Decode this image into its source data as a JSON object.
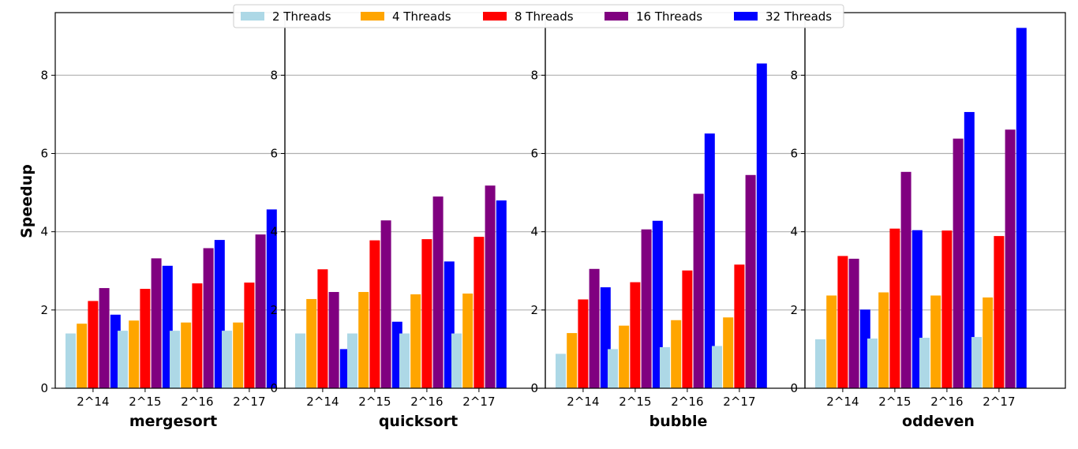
{
  "chart_data": {
    "type": "bar",
    "ylabel": "Speedup",
    "ylim": [
      0,
      9.6
    ],
    "yticks": [
      0,
      2,
      4,
      6,
      8
    ],
    "grid": "horizontal",
    "legend_position": "top-center",
    "categories": [
      "2^14",
      "2^15",
      "2^16",
      "2^17"
    ],
    "series_styles": [
      {
        "name": "2 Threads",
        "color": "#add8e6"
      },
      {
        "name": "4 Threads",
        "color": "#ffa500"
      },
      {
        "name": "8 Threads",
        "color": "#ff0000"
      },
      {
        "name": "16 Threads",
        "color": "#800080"
      },
      {
        "name": "32 Threads",
        "color": "#0000ff"
      }
    ],
    "panels": [
      {
        "xlabel": "mergesort",
        "series": [
          {
            "name": "2 Threads",
            "values": [
              1.4,
              1.47,
              1.47,
              1.47
            ]
          },
          {
            "name": "4 Threads",
            "values": [
              1.65,
              1.73,
              1.68,
              1.68
            ]
          },
          {
            "name": "8 Threads",
            "values": [
              2.23,
              2.54,
              2.68,
              2.7
            ]
          },
          {
            "name": "16 Threads",
            "values": [
              2.56,
              3.32,
              3.58,
              3.93
            ]
          },
          {
            "name": "32 Threads",
            "values": [
              1.88,
              3.13,
              3.79,
              4.57
            ]
          }
        ]
      },
      {
        "xlabel": "quicksort",
        "series": [
          {
            "name": "2 Threads",
            "values": [
              1.4,
              1.4,
              1.4,
              1.4
            ]
          },
          {
            "name": "4 Threads",
            "values": [
              2.28,
              2.46,
              2.4,
              2.42
            ]
          },
          {
            "name": "8 Threads",
            "values": [
              3.04,
              3.78,
              3.81,
              3.87
            ]
          },
          {
            "name": "16 Threads",
            "values": [
              2.46,
              4.29,
              4.9,
              5.18
            ]
          },
          {
            "name": "32 Threads",
            "values": [
              1.0,
              1.7,
              3.24,
              4.8
            ]
          }
        ]
      },
      {
        "xlabel": "bubble",
        "series": [
          {
            "name": "2 Threads",
            "values": [
              0.88,
              1.0,
              1.05,
              1.08
            ]
          },
          {
            "name": "4 Threads",
            "values": [
              1.41,
              1.6,
              1.74,
              1.81
            ]
          },
          {
            "name": "8 Threads",
            "values": [
              2.27,
              2.71,
              3.01,
              3.16
            ]
          },
          {
            "name": "16 Threads",
            "values": [
              3.05,
              4.06,
              4.97,
              5.45
            ]
          },
          {
            "name": "32 Threads",
            "values": [
              2.58,
              4.28,
              6.51,
              8.3
            ]
          }
        ]
      },
      {
        "xlabel": "oddeven",
        "series": [
          {
            "name": "2 Threads",
            "values": [
              1.25,
              1.27,
              1.29,
              1.31
            ]
          },
          {
            "name": "4 Threads",
            "values": [
              2.37,
              2.45,
              2.37,
              2.32
            ]
          },
          {
            "name": "8 Threads",
            "values": [
              3.38,
              4.08,
              4.03,
              3.89
            ]
          },
          {
            "name": "16 Threads",
            "values": [
              3.31,
              5.53,
              6.38,
              6.61
            ]
          },
          {
            "name": "32 Threads",
            "values": [
              2.01,
              4.04,
              7.06,
              9.21
            ]
          }
        ]
      }
    ]
  }
}
